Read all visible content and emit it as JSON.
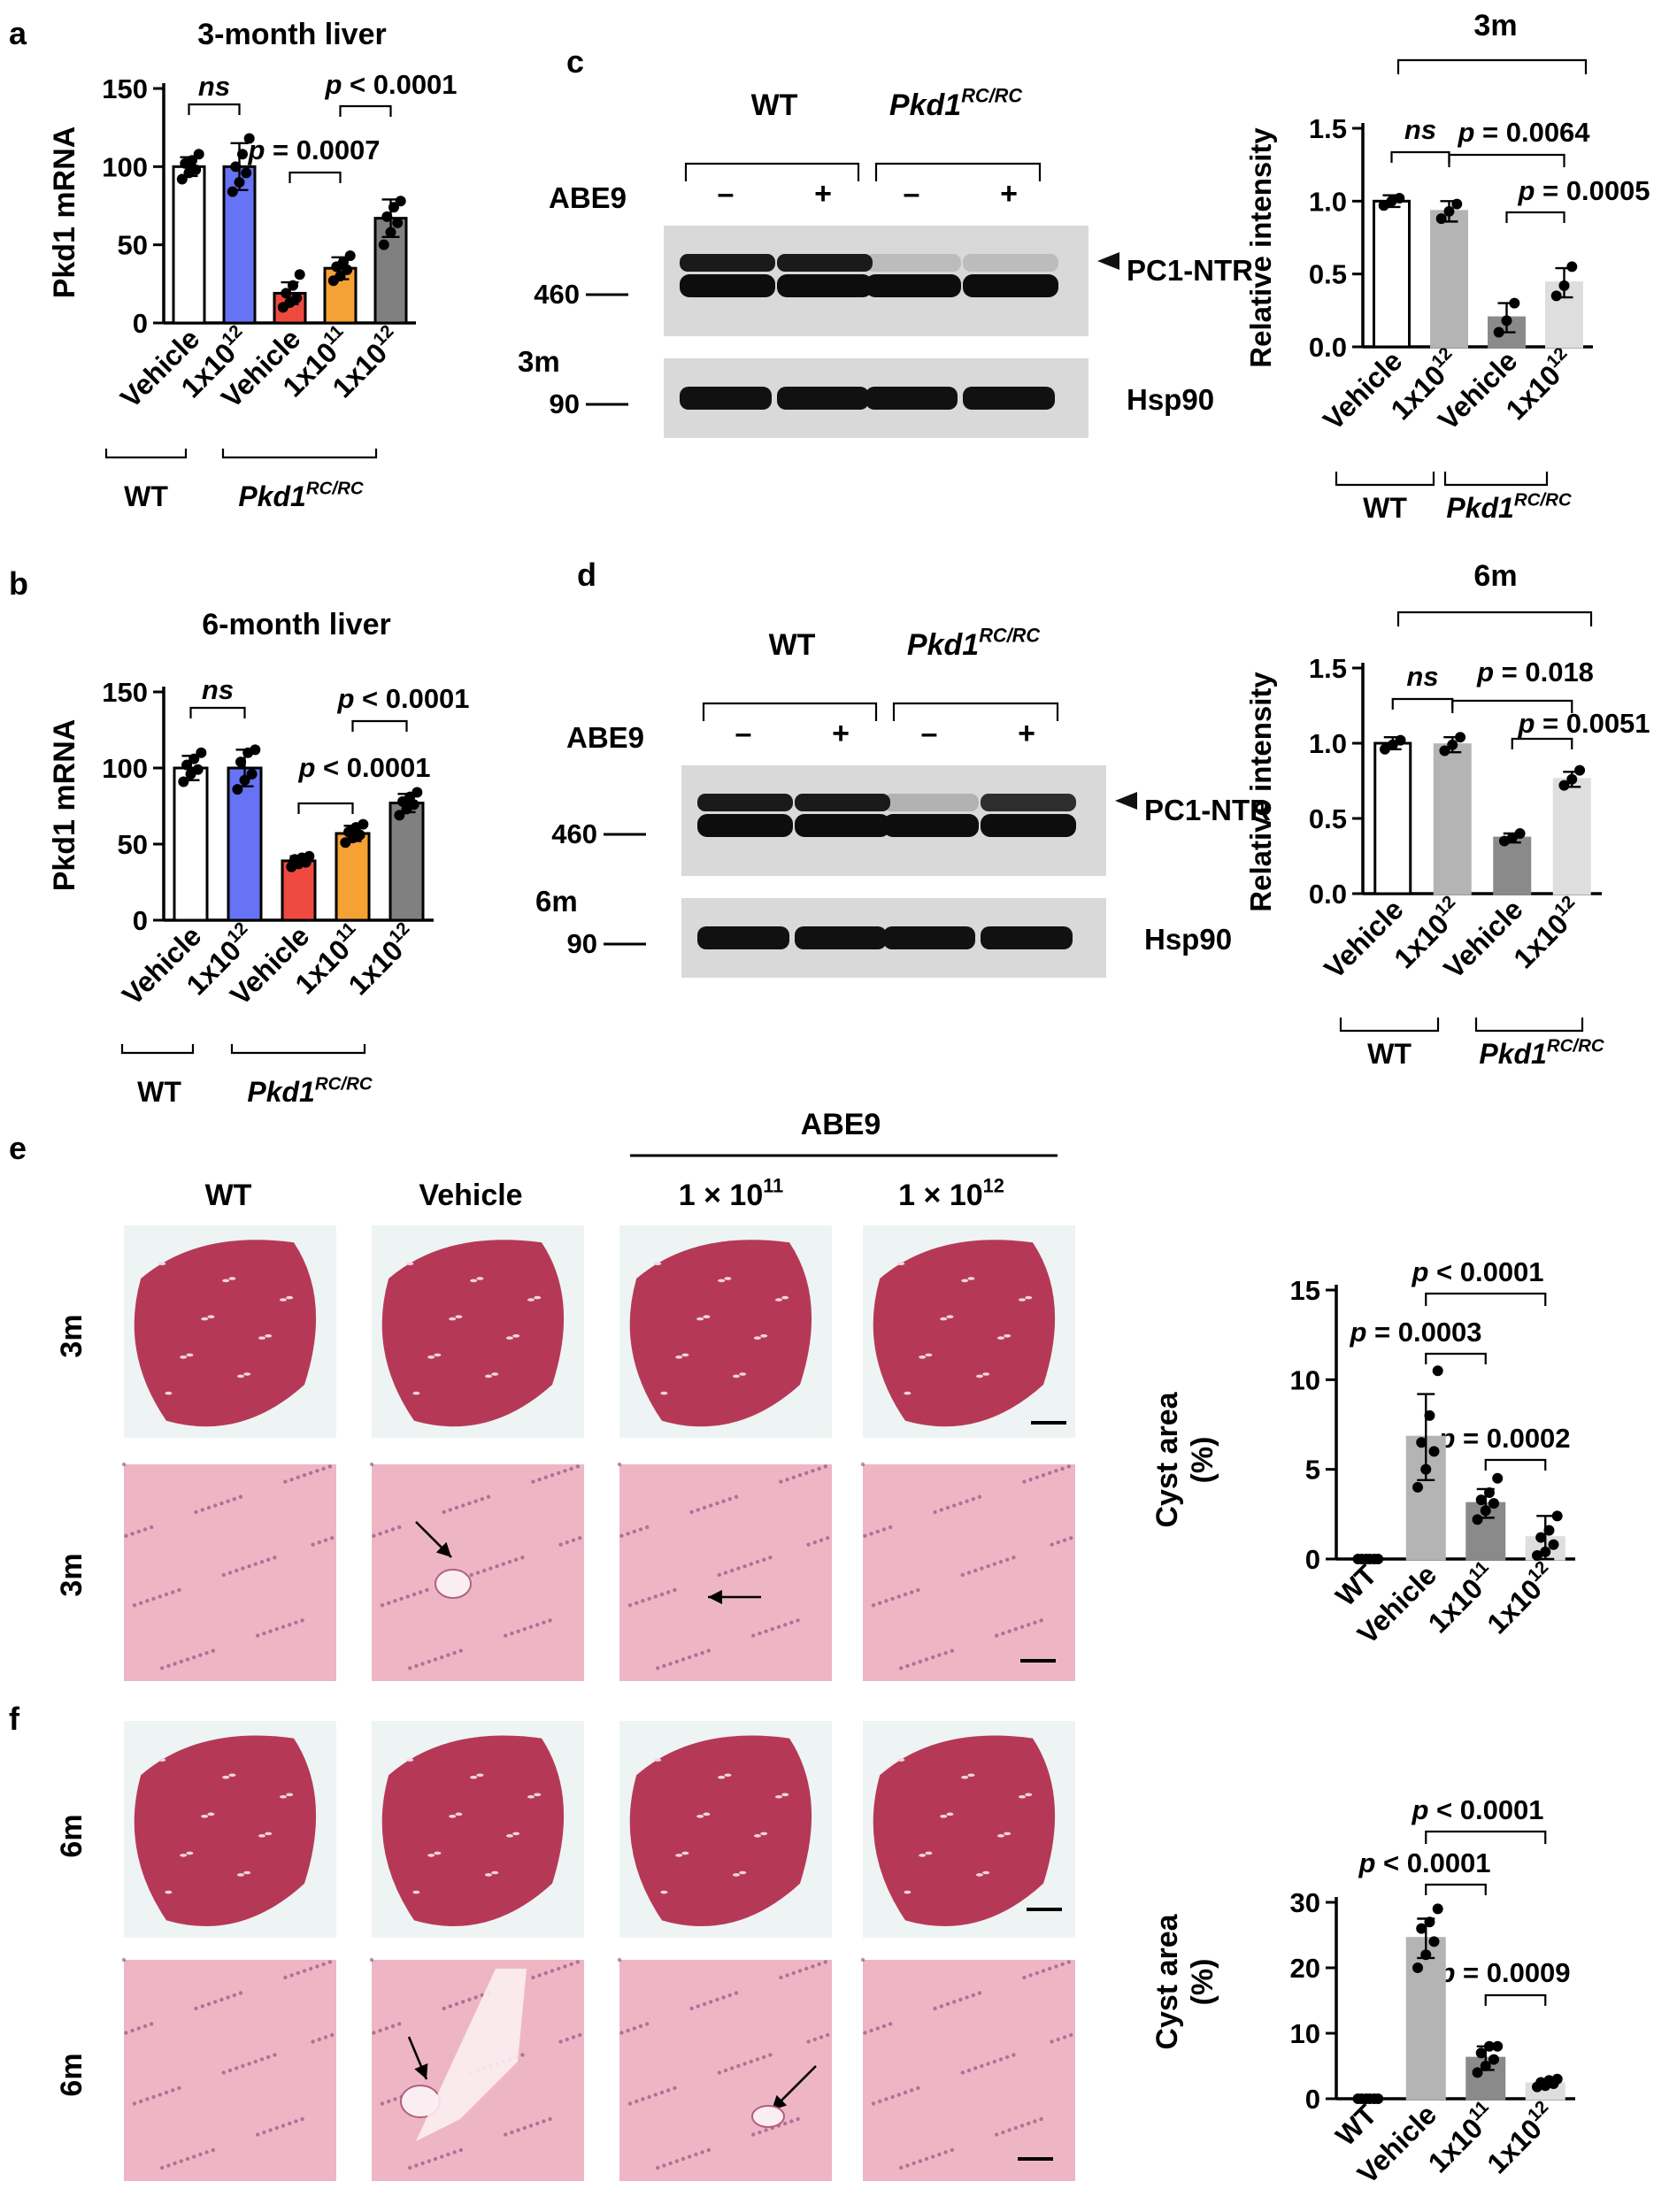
{
  "panels": {
    "a": {
      "letter": "a",
      "title": "3-month liver",
      "ylabel": "Pkd1 mRNA",
      "yticks": [
        "0",
        "50",
        "100",
        "150"
      ],
      "xlabels": [
        {
          "base": "Vehicle",
          "exp": ""
        },
        {
          "base": "1x10",
          "exp": "12"
        },
        {
          "base": "Vehicle",
          "exp": ""
        },
        {
          "base": "1x10",
          "exp": "11"
        },
        {
          "base": "1x10",
          "exp": "12"
        }
      ],
      "group_wt": "WT",
      "group_mut": {
        "base": "Pkd1",
        "sup": "RC/RC"
      },
      "sig": [
        "ns",
        "p = 0.0007",
        "p < 0.0001"
      ]
    },
    "b": {
      "letter": "b",
      "title": "6-month liver",
      "ylabel": "Pkd1 mRNA",
      "yticks": [
        "0",
        "50",
        "100",
        "150"
      ],
      "xlabels": [
        {
          "base": "Vehicle",
          "exp": ""
        },
        {
          "base": "1x10",
          "exp": "12"
        },
        {
          "base": "Vehicle",
          "exp": ""
        },
        {
          "base": "1x10",
          "exp": "11"
        },
        {
          "base": "1x10",
          "exp": "12"
        }
      ],
      "group_wt": "WT",
      "group_mut": {
        "base": "Pkd1",
        "sup": "RC/RC"
      },
      "sig": [
        "ns",
        "p < 0.0001",
        "p < 0.0001"
      ]
    },
    "c": {
      "letter": "c",
      "blot": {
        "wt": "WT",
        "mut": {
          "base": "Pkd1",
          "sup": "RC/RC"
        },
        "treat": "ABE9",
        "lanes": [
          "–",
          "+",
          "–",
          "+"
        ],
        "mw_top": "460",
        "mw_bottom": "90",
        "band_top": "PC1-NTR",
        "band_bottom": "Hsp90",
        "time": "3m"
      },
      "chart_title": "3m",
      "ylabel": "Relative intensity",
      "yticks": [
        "0.0",
        "0.5",
        "1.0",
        "1.5"
      ],
      "xlabels": [
        {
          "base": "Vehicle",
          "exp": ""
        },
        {
          "base": "1x10",
          "exp": "12"
        },
        {
          "base": "Vehicle",
          "exp": ""
        },
        {
          "base": "1x10",
          "exp": "12"
        }
      ],
      "group_wt": "WT",
      "group_mut": {
        "base": "Pkd1",
        "sup": "RC/RC"
      },
      "sig": [
        "ns",
        "p = 0.0064",
        "p = 0.0005"
      ]
    },
    "d": {
      "letter": "d",
      "blot": {
        "wt": "WT",
        "mut": {
          "base": "Pkd1",
          "sup": "RC/RC"
        },
        "treat": "ABE9",
        "lanes": [
          "–",
          "+",
          "–",
          "+"
        ],
        "mw_top": "460",
        "mw_bottom": "90",
        "band_top": "PC1-NTR",
        "band_bottom": "Hsp90",
        "time": "6m"
      },
      "chart_title": "6m",
      "ylabel": "Relative intensity",
      "yticks": [
        "0.0",
        "0.5",
        "1.0",
        "1.5"
      ],
      "xlabels": [
        {
          "base": "Vehicle",
          "exp": ""
        },
        {
          "base": "1x10",
          "exp": "12"
        },
        {
          "base": "Vehicle",
          "exp": ""
        },
        {
          "base": "1x10",
          "exp": "12"
        }
      ],
      "group_wt": "WT",
      "group_mut": {
        "base": "Pkd1",
        "sup": "RC/RC"
      },
      "sig": [
        "ns",
        "p = 0.018",
        "p = 0.0051"
      ]
    },
    "e": {
      "letter": "e",
      "treat_header": "ABE9",
      "columns": [
        {
          "base": "WT",
          "exp": ""
        },
        {
          "base": "Vehicle",
          "exp": ""
        },
        {
          "base": "1 × 10",
          "exp": "11"
        },
        {
          "base": "1 × 10",
          "exp": "12"
        }
      ],
      "row_labels": [
        "3m",
        "3m"
      ],
      "ylabel_line1": "Cyst area",
      "ylabel_line2": "(%)",
      "yticks": [
        "0",
        "5",
        "10",
        "15"
      ],
      "xlabels": [
        {
          "base": "WT",
          "exp": ""
        },
        {
          "base": "Vehicle",
          "exp": ""
        },
        {
          "base": "1x10",
          "exp": "11"
        },
        {
          "base": "1x10",
          "exp": "12"
        }
      ],
      "sig": [
        "p < 0.0001",
        "p = 0.0003",
        "p = 0.0002"
      ]
    },
    "f": {
      "letter": "f",
      "row_labels": [
        "6m",
        "6m"
      ],
      "ylabel_line1": "Cyst area",
      "ylabel_line2": "(%)",
      "yticks": [
        "0",
        "10",
        "20",
        "30"
      ],
      "xlabels": [
        {
          "base": "WT",
          "exp": ""
        },
        {
          "base": "Vehicle",
          "exp": ""
        },
        {
          "base": "1x10",
          "exp": "11"
        },
        {
          "base": "1x10",
          "exp": "12"
        }
      ],
      "sig": [
        "p < 0.0001",
        "p < 0.0001",
        "p = 0.0009"
      ]
    }
  },
  "colors": {
    "wt": "#ffffff",
    "wt_treated": "#6673f5",
    "vehicle": "#ef4a3f",
    "low_dose": "#f6a133",
    "high_dose": "#808080",
    "gray_dark": "#8a8a8a",
    "gray_mid": "#b4b4b4",
    "gray_light": "#dedede",
    "blot_bg": "#d9d9d9",
    "he_pink": "#e07a94",
    "he_dark": "#b0284a"
  },
  "chart_data": [
    {
      "type": "bar",
      "panel": "a",
      "title": "3-month liver",
      "ylabel": "Pkd1 mRNA",
      "categories": [
        "WT Vehicle",
        "WT 1x10^12",
        "Pkd1 RC/RC Vehicle",
        "Pkd1 RC/RC 1x10^11",
        "Pkd1 RC/RC 1x10^12"
      ],
      "values": [
        100,
        100,
        19,
        35,
        67
      ],
      "errors": [
        6,
        15,
        7,
        7,
        12
      ],
      "points": [
        [
          92,
          96,
          98,
          102,
          104,
          108
        ],
        [
          84,
          90,
          96,
          100,
          108,
          118
        ],
        [
          10,
          13,
          16,
          19,
          24,
          31
        ],
        [
          27,
          30,
          34,
          36,
          39,
          43
        ],
        [
          50,
          58,
          64,
          68,
          74,
          78
        ]
      ],
      "ylim": [
        0,
        150
      ]
    },
    {
      "type": "bar",
      "panel": "b",
      "title": "6-month liver",
      "ylabel": "Pkd1 mRNA",
      "categories": [
        "WT Vehicle",
        "WT 1x10^12",
        "Pkd1 RC/RC Vehicle",
        "Pkd1 RC/RC 1x10^11",
        "Pkd1 RC/RC 1x10^12"
      ],
      "values": [
        100,
        100,
        39,
        57,
        77
      ],
      "errors": [
        8,
        12,
        3,
        5,
        6
      ],
      "points": [
        [
          91,
          96,
          99,
          102,
          106,
          110
        ],
        [
          86,
          92,
          96,
          104,
          110,
          112
        ],
        [
          35,
          37,
          38,
          40,
          41,
          42
        ],
        [
          51,
          54,
          56,
          58,
          61,
          63
        ],
        [
          69,
          73,
          76,
          78,
          81,
          84
        ]
      ],
      "ylim": [
        0,
        150
      ]
    },
    {
      "type": "bar",
      "panel": "c",
      "title": "3m",
      "ylabel": "Relative intensity",
      "categories": [
        "WT Vehicle",
        "WT 1x10^12",
        "Pkd1 RC/RC Vehicle",
        "Pkd1 RC/RC 1x10^12"
      ],
      "values": [
        1.0,
        0.93,
        0.2,
        0.44
      ],
      "errors": [
        0.04,
        0.07,
        0.1,
        0.1
      ],
      "points": [
        [
          0.97,
          1.0,
          1.02
        ],
        [
          0.88,
          0.93,
          0.98
        ],
        [
          0.1,
          0.18,
          0.3
        ],
        [
          0.35,
          0.42,
          0.55
        ]
      ],
      "ylim": [
        0,
        1.5
      ]
    },
    {
      "type": "bar",
      "panel": "d",
      "title": "6m",
      "ylabel": "Relative intensity",
      "categories": [
        "WT Vehicle",
        "WT 1x10^12",
        "Pkd1 RC/RC Vehicle",
        "Pkd1 RC/RC 1x10^12"
      ],
      "values": [
        1.0,
        0.99,
        0.37,
        0.76
      ],
      "errors": [
        0.04,
        0.05,
        0.03,
        0.05
      ],
      "points": [
        [
          0.96,
          0.99,
          1.02
        ],
        [
          0.95,
          0.99,
          1.04
        ],
        [
          0.35,
          0.37,
          0.4
        ],
        [
          0.72,
          0.76,
          0.82
        ]
      ],
      "ylim": [
        0,
        1.5
      ]
    },
    {
      "type": "bar",
      "panel": "e",
      "ylabel": "Cyst area (%)",
      "categories": [
        "WT",
        "Vehicle",
        "1x10^11",
        "1x10^12"
      ],
      "values": [
        0,
        6.8,
        3.1,
        1.2
      ],
      "errors": [
        0,
        2.4,
        0.8,
        1.2
      ],
      "points": [
        [
          0,
          0,
          0,
          0,
          0,
          0
        ],
        [
          4,
          5,
          6,
          6.5,
          8,
          10.5
        ],
        [
          2.2,
          2.7,
          3.1,
          3.3,
          3.7,
          4.5
        ],
        [
          0.2,
          0.4,
          0.8,
          1.2,
          1.6,
          2.4
        ]
      ],
      "ylim": [
        0,
        15
      ]
    },
    {
      "type": "bar",
      "panel": "f",
      "ylabel": "Cyst area (%)",
      "categories": [
        "WT",
        "Vehicle",
        "1x10^11",
        "1x10^12"
      ],
      "values": [
        0,
        24.5,
        6.2,
        2.3
      ],
      "errors": [
        0,
        3,
        1.8,
        0.5
      ],
      "points": [
        [
          0,
          0,
          0,
          0,
          0,
          0
        ],
        [
          20,
          22,
          24,
          26,
          27,
          29
        ],
        [
          4,
          5,
          6,
          7,
          8,
          8
        ],
        [
          1.8,
          2,
          2.3,
          2.5,
          2.8,
          3
        ]
      ],
      "ylim": [
        0,
        30
      ]
    }
  ]
}
